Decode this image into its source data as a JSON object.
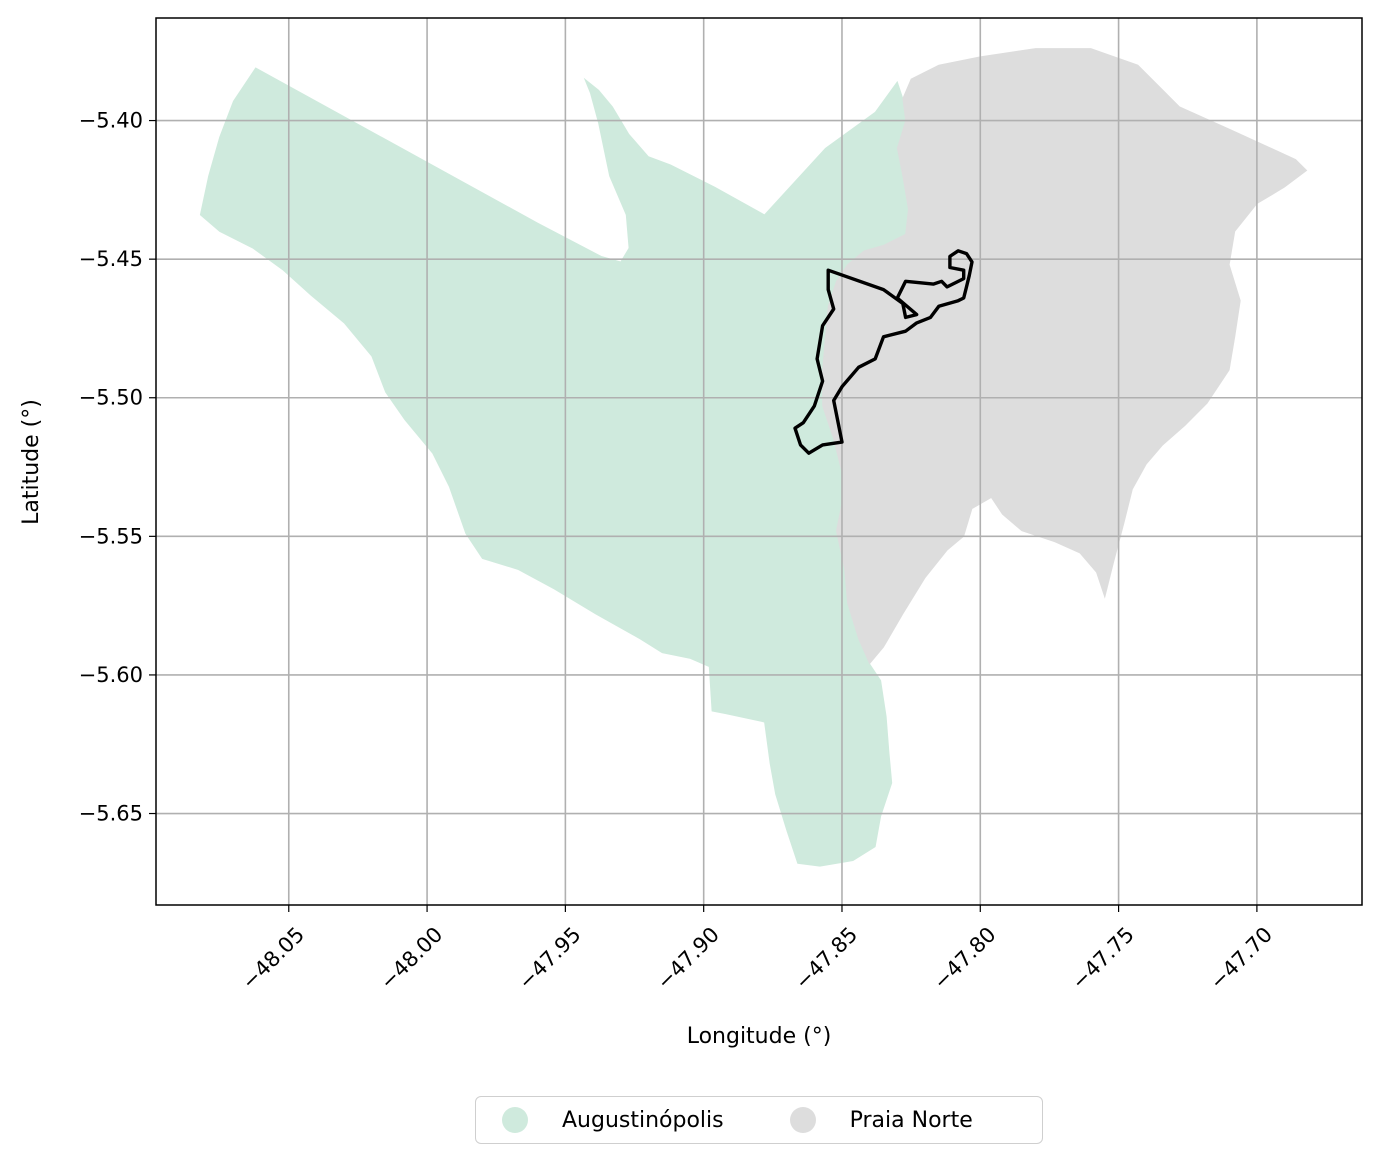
{
  "chart_data": {
    "type": "map",
    "title": "",
    "xlabel": "Longitude (°)",
    "ylabel": "Latitude (°)",
    "xlim": [
      -48.098,
      -47.662
    ],
    "ylim": [
      -5.683,
      -5.363
    ],
    "x_ticks": [
      -48.05,
      -48.0,
      -47.95,
      -47.9,
      -47.85,
      -47.8,
      -47.75,
      -47.7
    ],
    "x_tick_labels": [
      "−48.05",
      "−48.00",
      "−47.95",
      "−47.90",
      "−47.85",
      "−47.80",
      "−47.75",
      "−47.70"
    ],
    "y_ticks": [
      -5.4,
      -5.45,
      -5.5,
      -5.55,
      -5.6,
      -5.65
    ],
    "y_tick_labels": [
      "−5.40",
      "−5.45",
      "−5.50",
      "−5.55",
      "−5.60",
      "−5.65"
    ],
    "grid": true,
    "legend_position": "bottom-center",
    "regions": [
      {
        "name": "Augustinópolis",
        "color": "#cfeadd",
        "outline": [
          [
            -48.062,
            -5.381
          ],
          [
            -47.96,
            -5.437
          ],
          [
            -47.937,
            -5.449
          ],
          [
            -47.93,
            -5.451
          ],
          [
            -47.927,
            -5.446
          ],
          [
            -47.928,
            -5.434
          ],
          [
            -47.934,
            -5.42
          ],
          [
            -47.938,
            -5.401
          ],
          [
            -47.941,
            -5.39
          ],
          [
            -47.943,
            -5.385
          ],
          [
            -47.938,
            -5.389
          ],
          [
            -47.933,
            -5.395
          ],
          [
            -47.927,
            -5.405
          ],
          [
            -47.92,
            -5.413
          ],
          [
            -47.912,
            -5.416
          ],
          [
            -47.896,
            -5.424
          ],
          [
            -47.878,
            -5.434
          ],
          [
            -47.856,
            -5.41
          ],
          [
            -47.838,
            -5.397
          ],
          [
            -47.83,
            -5.386
          ],
          [
            -47.828,
            -5.392
          ],
          [
            -47.827,
            -5.4
          ],
          [
            -47.83,
            -5.41
          ],
          [
            -47.828,
            -5.42
          ],
          [
            -47.826,
            -5.432
          ],
          [
            -47.827,
            -5.441
          ],
          [
            -47.835,
            -5.445
          ],
          [
            -47.842,
            -5.447
          ],
          [
            -47.848,
            -5.452
          ],
          [
            -47.852,
            -5.458
          ],
          [
            -47.855,
            -5.467
          ],
          [
            -47.856,
            -5.478
          ],
          [
            -47.857,
            -5.49
          ],
          [
            -47.857,
            -5.503
          ],
          [
            -47.853,
            -5.515
          ],
          [
            -47.85,
            -5.527
          ],
          [
            -47.85,
            -5.538
          ],
          [
            -47.852,
            -5.548
          ],
          [
            -47.849,
            -5.562
          ],
          [
            -47.848,
            -5.574
          ],
          [
            -47.844,
            -5.587
          ],
          [
            -47.84,
            -5.596
          ],
          [
            -47.836,
            -5.602
          ],
          [
            -47.834,
            -5.615
          ],
          [
            -47.833,
            -5.628
          ],
          [
            -47.832,
            -5.639
          ],
          [
            -47.836,
            -5.651
          ],
          [
            -47.838,
            -5.662
          ],
          [
            -47.846,
            -5.667
          ],
          [
            -47.858,
            -5.669
          ],
          [
            -47.866,
            -5.668
          ],
          [
            -47.87,
            -5.656
          ],
          [
            -47.874,
            -5.643
          ],
          [
            -47.876,
            -5.632
          ],
          [
            -47.878,
            -5.617
          ],
          [
            -47.892,
            -5.614
          ],
          [
            -47.897,
            -5.613
          ],
          [
            -47.898,
            -5.597
          ],
          [
            -47.905,
            -5.594
          ],
          [
            -47.915,
            -5.592
          ],
          [
            -47.923,
            -5.587
          ],
          [
            -47.939,
            -5.578
          ],
          [
            -47.954,
            -5.569
          ],
          [
            -47.967,
            -5.562
          ],
          [
            -47.98,
            -5.558
          ],
          [
            -47.986,
            -5.549
          ],
          [
            -47.992,
            -5.532
          ],
          [
            -47.998,
            -5.52
          ],
          [
            -48.008,
            -5.508
          ],
          [
            -48.015,
            -5.498
          ],
          [
            -48.02,
            -5.485
          ],
          [
            -48.03,
            -5.473
          ],
          [
            -48.042,
            -5.463
          ],
          [
            -48.052,
            -5.454
          ],
          [
            -48.063,
            -5.446
          ],
          [
            -48.075,
            -5.44
          ],
          [
            -48.082,
            -5.434
          ],
          [
            -48.079,
            -5.42
          ],
          [
            -48.075,
            -5.406
          ],
          [
            -48.07,
            -5.393
          ]
        ]
      },
      {
        "name": "Praia Norte",
        "color": "#dddddd",
        "outline": [
          [
            -47.828,
            -5.392
          ],
          [
            -47.825,
            -5.385
          ],
          [
            -47.815,
            -5.38
          ],
          [
            -47.8,
            -5.377
          ],
          [
            -47.78,
            -5.374
          ],
          [
            -47.76,
            -5.374
          ],
          [
            -47.743,
            -5.38
          ],
          [
            -47.728,
            -5.395
          ],
          [
            -47.708,
            -5.404
          ],
          [
            -47.686,
            -5.414
          ],
          [
            -47.682,
            -5.418
          ],
          [
            -47.69,
            -5.424
          ],
          [
            -47.7,
            -5.43
          ],
          [
            -47.708,
            -5.44
          ],
          [
            -47.71,
            -5.452
          ],
          [
            -47.706,
            -5.465
          ],
          [
            -47.708,
            -5.478
          ],
          [
            -47.71,
            -5.49
          ],
          [
            -47.718,
            -5.502
          ],
          [
            -47.726,
            -5.51
          ],
          [
            -47.734,
            -5.517
          ],
          [
            -47.74,
            -5.524
          ],
          [
            -47.745,
            -5.533
          ],
          [
            -47.748,
            -5.545
          ],
          [
            -47.752,
            -5.56
          ],
          [
            -47.755,
            -5.572
          ],
          [
            -47.758,
            -5.563
          ],
          [
            -47.764,
            -5.556
          ],
          [
            -47.773,
            -5.552
          ],
          [
            -47.785,
            -5.548
          ],
          [
            -47.792,
            -5.542
          ],
          [
            -47.796,
            -5.536
          ],
          [
            -47.803,
            -5.54
          ],
          [
            -47.806,
            -5.55
          ],
          [
            -47.812,
            -5.555
          ],
          [
            -47.82,
            -5.565
          ],
          [
            -47.828,
            -5.578
          ],
          [
            -47.835,
            -5.59
          ],
          [
            -47.84,
            -5.596
          ],
          [
            -47.844,
            -5.587
          ],
          [
            -47.848,
            -5.574
          ],
          [
            -47.849,
            -5.562
          ],
          [
            -47.852,
            -5.548
          ],
          [
            -47.85,
            -5.538
          ],
          [
            -47.85,
            -5.527
          ],
          [
            -47.853,
            -5.515
          ],
          [
            -47.857,
            -5.503
          ],
          [
            -47.857,
            -5.49
          ],
          [
            -47.856,
            -5.478
          ],
          [
            -47.855,
            -5.467
          ],
          [
            -47.852,
            -5.458
          ],
          [
            -47.848,
            -5.452
          ],
          [
            -47.842,
            -5.447
          ],
          [
            -47.835,
            -5.445
          ],
          [
            -47.827,
            -5.441
          ],
          [
            -47.826,
            -5.432
          ],
          [
            -47.828,
            -5.42
          ],
          [
            -47.83,
            -5.41
          ],
          [
            -47.827,
            -5.4
          ]
        ]
      }
    ],
    "outline_polygon": [
      [
        -47.855,
        -5.454
      ],
      [
        -47.835,
        -5.461
      ],
      [
        -47.828,
        -5.466
      ],
      [
        -47.827,
        -5.471
      ],
      [
        -47.823,
        -5.47
      ],
      [
        -47.83,
        -5.464
      ],
      [
        -47.827,
        -5.458
      ],
      [
        -47.817,
        -5.459
      ],
      [
        -47.814,
        -5.458
      ],
      [
        -47.812,
        -5.46
      ],
      [
        -47.806,
        -5.457
      ],
      [
        -47.806,
        -5.454
      ],
      [
        -47.811,
        -5.453
      ],
      [
        -47.811,
        -5.449
      ],
      [
        -47.808,
        -5.447
      ],
      [
        -47.805,
        -5.448
      ],
      [
        -47.803,
        -5.451
      ],
      [
        -47.804,
        -5.456
      ],
      [
        -47.805,
        -5.46
      ],
      [
        -47.806,
        -5.464
      ],
      [
        -47.808,
        -5.465
      ],
      [
        -47.815,
        -5.467
      ],
      [
        -47.818,
        -5.471
      ],
      [
        -47.823,
        -5.473
      ],
      [
        -47.827,
        -5.476
      ],
      [
        -47.835,
        -5.478
      ],
      [
        -47.838,
        -5.486
      ],
      [
        -47.844,
        -5.489
      ],
      [
        -47.85,
        -5.496
      ],
      [
        -47.853,
        -5.501
      ],
      [
        -47.85,
        -5.516
      ],
      [
        -47.857,
        -5.517
      ],
      [
        -47.862,
        -5.52
      ],
      [
        -47.865,
        -5.517
      ],
      [
        -47.867,
        -5.511
      ],
      [
        -47.864,
        -5.509
      ],
      [
        -47.86,
        -5.503
      ],
      [
        -47.857,
        -5.494
      ],
      [
        -47.859,
        -5.486
      ],
      [
        -47.857,
        -5.474
      ],
      [
        -47.853,
        -5.468
      ],
      [
        -47.855,
        -5.461
      ]
    ]
  },
  "legend": {
    "items": [
      {
        "label": "Augustinópolis",
        "color": "#cfeadd"
      },
      {
        "label": "Praia Norte",
        "color": "#dddddd"
      }
    ]
  }
}
